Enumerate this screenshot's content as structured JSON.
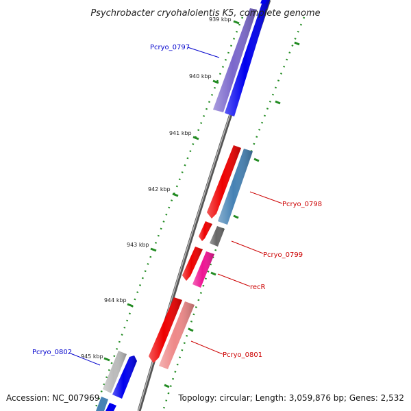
{
  "title": "Psychrobacter cryohalolentis K5, complete genome",
  "footer": {
    "accession": "Accession: NC_007969",
    "summary": "Topology: circular; Length: 3,059,876 bp; Genes: 2,532"
  },
  "ticks": [
    {
      "label": "939 kbp",
      "kbp": 939
    },
    {
      "label": "940 kbp",
      "kbp": 940
    },
    {
      "label": "941 kbp",
      "kbp": 941
    },
    {
      "label": "942 kbp",
      "kbp": 942
    },
    {
      "label": "943 kbp",
      "kbp": 943
    },
    {
      "label": "944 kbp",
      "kbp": 944
    },
    {
      "label": "945 kbp",
      "kbp": 945
    }
  ],
  "genes": [
    {
      "name": "Pcryo_0797",
      "strand": "forward",
      "color": "#0000ee",
      "feature_color": "#7b68cc"
    },
    {
      "name": "Pcryo_0798",
      "strand": "reverse",
      "color": "#ee0000",
      "feature_color": "#4682b4"
    },
    {
      "name": "Pcryo_0799",
      "strand": "reverse",
      "color": "#ee0000",
      "feature_color": "#666666"
    },
    {
      "name": "recR",
      "strand": "reverse",
      "color": "#ee0000",
      "feature_color": "#ee1493"
    },
    {
      "name": "Pcryo_0801",
      "strand": "reverse",
      "color": "#ee0000",
      "feature_color": "#ee8888"
    },
    {
      "name": "Pcryo_0802",
      "strand": "forward",
      "color": "#0000ee",
      "feature_color": "#bbbbbb"
    }
  ],
  "colors": {
    "backbone": "#888888",
    "gc_ticks": "#228b22",
    "forward_label": "#0000cc",
    "reverse_label": "#cc0000"
  }
}
